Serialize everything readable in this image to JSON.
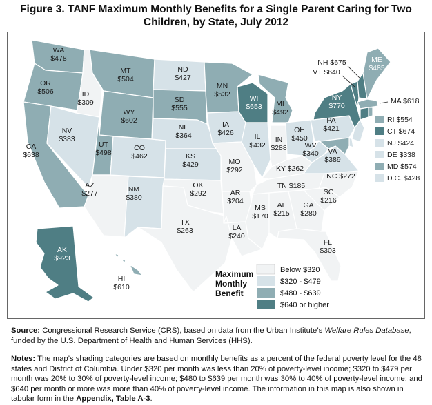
{
  "title_line1": "Figure 3. TANF Maximum Monthly Benefits for a Single Parent Caring for Two",
  "title_line2": "Children, by State, July 2012",
  "colors": {
    "c1": "#f1f3f4",
    "c2": "#d6e2e8",
    "c3": "#8fadb3",
    "c4": "#4f7e84",
    "border": "#ffffff"
  },
  "states": {
    "WA": "WA",
    "WA_v": "$478",
    "OR": "OR",
    "OR_v": "$506",
    "CA": "CA",
    "CA_v": "$638",
    "ID": "ID",
    "ID_v": "$309",
    "NV": "NV",
    "NV_v": "$383",
    "MT": "MT",
    "MT_v": "$504",
    "WY": "WY",
    "WY_v": "$602",
    "UT": "UT",
    "UT_v": "$498",
    "AZ": "AZ",
    "AZ_v": "$277",
    "CO": "CO",
    "CO_v": "$462",
    "NM": "NM",
    "NM_v": "$380",
    "ND": "ND",
    "ND_v": "$427",
    "SD": "SD",
    "SD_v": "$555",
    "NE": "NE",
    "NE_v": "$364",
    "KS": "KS",
    "KS_v": "$429",
    "OK": "OK",
    "OK_v": "$292",
    "TX": "TX",
    "TX_v": "$263",
    "MN": "MN",
    "MN_v": "$532",
    "IA": "IA",
    "IA_v": "$426",
    "MO": "MO",
    "MO_v": "$292",
    "AR": "AR",
    "AR_v": "$204",
    "LA": "LA",
    "LA_v": "$240",
    "WI": "WI",
    "WI_v": "$653",
    "IL": "IL",
    "IL_v": "$432",
    "MI": "MI",
    "MI_v": "$492",
    "IN": "IN",
    "IN_v": "$288",
    "OH": "OH",
    "OH_v": "$450",
    "KY": "KY $262",
    "TN": "TN $185",
    "MS": "MS",
    "MS_v": "$170",
    "AL": "AL",
    "AL_v": "$215",
    "GA": "GA",
    "GA_v": "$280",
    "FL": "FL",
    "FL_v": "$303",
    "SC": "SC",
    "SC_v": "$216",
    "NC": "NC $272",
    "VA": "VA",
    "VA_v": "$389",
    "WV": "WV",
    "WV_v": "$340",
    "PA": "PA",
    "PA_v": "$421",
    "NY": "NY",
    "NY_v": "$770",
    "ME": "ME",
    "ME_v": "$485",
    "NH": "NH $675",
    "VT": "VT $640",
    "MA": "MA $618",
    "RI": "RI $554",
    "CT": "CT $674",
    "NJ": "NJ $424",
    "DE": "DE $338",
    "MD": "MD $574",
    "DC": "D.C. $428",
    "AK": "AK",
    "AK_v": "$923",
    "HI": "HI",
    "HI_v": "$610"
  },
  "legend": {
    "title1": "Maximum",
    "title2": "Monthly",
    "title3": "Benefit",
    "items": [
      "Below $320",
      "$320 - $479",
      "$480  -  $639",
      "$640 or higher"
    ]
  },
  "footer": {
    "source_label": "Source:",
    "source_text1": " Congressional Research Service (CRS), based on data from the Urban Institute’s ",
    "source_italic": "Welfare Rules Database",
    "source_text2": ", funded by the U.S. Department of Health and Human Services (HHS).",
    "notes_label": "Notes:",
    "notes_text": " The map’s shading categories are based on monthly benefits as a percent of the federal poverty level for the 48 states and District of Columbia. Under $320 per month was less than 20% of poverty-level income; $320 to $479 per month was 20% to 30% of poverty-level income; $480 to $639 per month was 30% to 40% of poverty-level income; and $640 per month or more was more than 40% of poverty-level income. The information in this map is also shown in tabular form in the ",
    "notes_bold": "Appendix, Table A-3",
    "notes_end": "."
  }
}
